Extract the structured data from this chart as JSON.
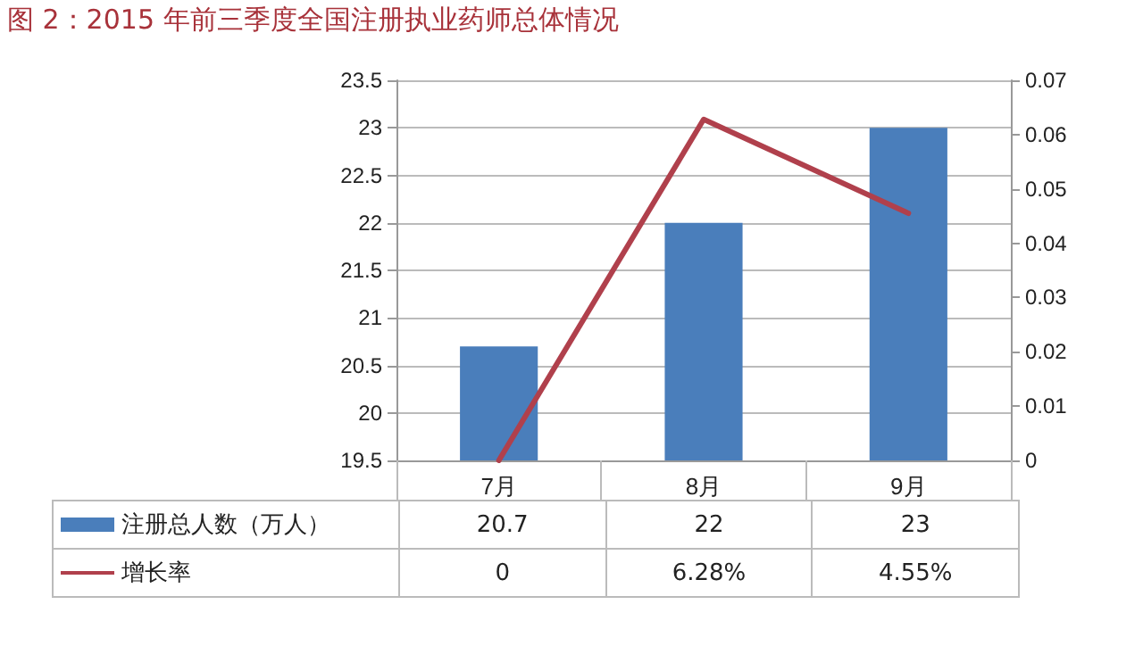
{
  "chart_data": {
    "type": "bar",
    "title": "图 2：2015 年前三季度全国注册执业药师总体情况",
    "categories": [
      "7月",
      "8月",
      "9月"
    ],
    "series": [
      {
        "name": "注册总人数（万人）",
        "color": "#4a7ebb",
        "values": [
          20.7,
          22,
          23
        ],
        "value_labels": [
          "20.7",
          "22",
          "23"
        ]
      },
      {
        "name": "增长率",
        "type": "line",
        "axis": "y2",
        "color": "#b0404c",
        "values": [
          0,
          0.0628,
          0.0455
        ],
        "value_labels": [
          "0",
          "6.28%",
          "4.55%"
        ]
      }
    ],
    "ylim": [
      19.5,
      23.5
    ],
    "yticks": [
      19.5,
      20,
      20.5,
      21,
      21.5,
      22,
      22.5,
      23,
      23.5
    ],
    "y2lim": [
      0,
      0.07
    ],
    "y2ticks": [
      0,
      0.01,
      0.02,
      0.03,
      0.04,
      0.05,
      0.06,
      0.07
    ],
    "grid": "y",
    "legend": "bottom",
    "marker": "none"
  }
}
